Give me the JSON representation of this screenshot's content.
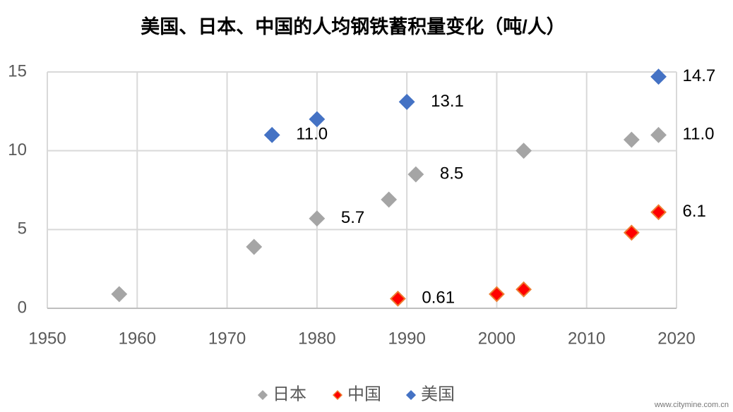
{
  "chart_data": {
    "type": "scatter",
    "title": "美国、日本、中国的人均钢铁蓄积量变化（吨/人）",
    "xlim": [
      1950,
      2020
    ],
    "xticks": [
      1950,
      1960,
      1970,
      1980,
      1990,
      2000,
      2010,
      2020
    ],
    "ylim": [
      0,
      15
    ],
    "yticks": [
      0,
      5,
      10,
      15
    ],
    "grid": true,
    "legend": "bottom",
    "series": [
      {
        "name": "日本",
        "color": "#a5a5a5",
        "stroke": "#a5a5a5",
        "x": [
          1958,
          1973,
          1980,
          1988,
          1991,
          2003,
          2015,
          2018
        ],
        "values": [
          0.9,
          3.9,
          5.7,
          6.9,
          8.5,
          10.0,
          10.7,
          11.0
        ],
        "value_labels": [
          null,
          null,
          "5.7",
          null,
          "8.5",
          null,
          null,
          "11.0"
        ]
      },
      {
        "name": "中国",
        "color": "#ff0000",
        "stroke": "#ed7d31",
        "x": [
          1989,
          2000,
          2003,
          2015,
          2018
        ],
        "values": [
          0.61,
          0.9,
          1.2,
          4.8,
          6.1
        ],
        "value_labels": [
          "0.61",
          null,
          null,
          null,
          "6.1"
        ]
      },
      {
        "name": "美国",
        "color": "#4472c4",
        "stroke": "#4472c4",
        "x": [
          1975,
          1980,
          1990,
          2018
        ],
        "values": [
          11.0,
          12.0,
          13.1,
          14.7
        ],
        "value_labels": [
          "11.0",
          null,
          "13.1",
          "14.7"
        ]
      }
    ],
    "watermark": "www.citymine.com.cn"
  }
}
